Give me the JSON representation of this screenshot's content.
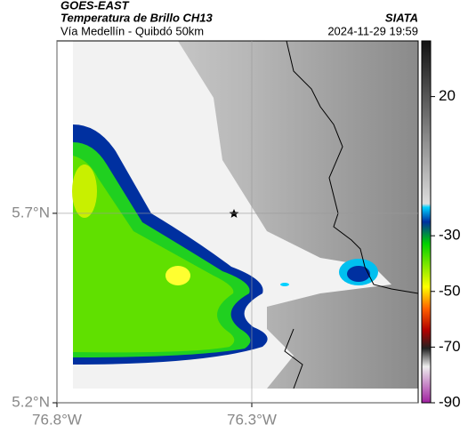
{
  "header": {
    "title": "GOES-EAST",
    "subtitle": "Temperatura de Brillo CH13",
    "region": "Vía Medellín - Quibdó 50km",
    "source": "SIATA",
    "timestamp": "2024-11-29 19:59"
  },
  "map": {
    "xlim": [
      -76.8,
      -75.873
    ],
    "ylim": [
      5.2,
      6.155
    ],
    "xticks": [
      {
        "value": -76.8,
        "label": "76.8°W"
      },
      {
        "value": -76.3,
        "label": "76.3°W"
      }
    ],
    "yticks": [
      {
        "value": 5.2,
        "label": "5.2°N"
      },
      {
        "value": 5.7,
        "label": "5.7°N"
      }
    ],
    "grid": true
  },
  "colorbar": {
    "lim": [
      -90,
      40
    ],
    "ticks": [
      20,
      -30,
      -50,
      -70,
      -90
    ]
  }
}
